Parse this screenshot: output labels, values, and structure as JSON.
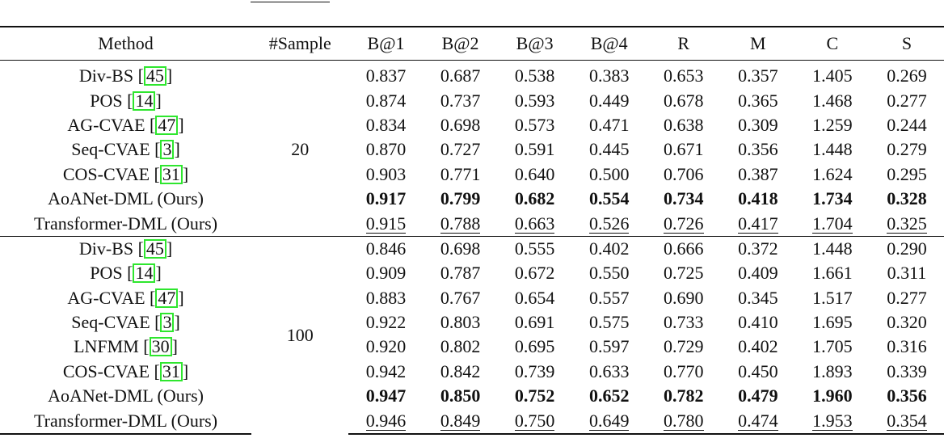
{
  "table": {
    "columns": [
      "Method",
      "#Sample",
      "B@1",
      "B@2",
      "B@3",
      "B@4",
      "R",
      "M",
      "C",
      "S"
    ],
    "colors": {
      "citation_box": "#2ee62e",
      "text": "#111111"
    },
    "groups": [
      {
        "sample": "20",
        "rows": [
          {
            "method": "Div-BS [",
            "cite": "45",
            "close": "]",
            "style": "normal",
            "values": [
              "0.837",
              "0.687",
              "0.538",
              "0.383",
              "0.653",
              "0.357",
              "1.405",
              "0.269"
            ]
          },
          {
            "method": "POS [",
            "cite": "14",
            "close": "]",
            "style": "normal",
            "values": [
              "0.874",
              "0.737",
              "0.593",
              "0.449",
              "0.678",
              "0.365",
              "1.468",
              "0.277"
            ]
          },
          {
            "method": "AG-CVAE [",
            "cite": "47",
            "close": "]",
            "style": "normal",
            "values": [
              "0.834",
              "0.698",
              "0.573",
              "0.471",
              "0.638",
              "0.309",
              "1.259",
              "0.244"
            ]
          },
          {
            "method": "Seq-CVAE [",
            "cite": "3",
            "close": "]",
            "style": "normal",
            "values": [
              "0.870",
              "0.727",
              "0.591",
              "0.445",
              "0.671",
              "0.356",
              "1.448",
              "0.279"
            ]
          },
          {
            "method": "COS-CVAE [",
            "cite": "31",
            "close": "]",
            "style": "normal",
            "values": [
              "0.903",
              "0.771",
              "0.640",
              "0.500",
              "0.706",
              "0.387",
              "1.624",
              "0.295"
            ]
          },
          {
            "method": "AoANet-DML (Ours)",
            "style": "best",
            "values": [
              "0.917",
              "0.799",
              "0.682",
              "0.554",
              "0.734",
              "0.418",
              "1.734",
              "0.328"
            ]
          },
          {
            "method": "Transformer-DML (Ours)",
            "style": "second",
            "values": [
              "0.915",
              "0.788",
              "0.663",
              "0.526",
              "0.726",
              "0.417",
              "1.704",
              "0.325"
            ]
          }
        ]
      },
      {
        "sample": "100",
        "rows": [
          {
            "method": "Div-BS [",
            "cite": "45",
            "close": "]",
            "style": "normal",
            "values": [
              "0.846",
              "0.698",
              "0.555",
              "0.402",
              "0.666",
              "0.372",
              "1.448",
              "0.290"
            ]
          },
          {
            "method": "POS [",
            "cite": "14",
            "close": "]",
            "style": "normal",
            "values": [
              "0.909",
              "0.787",
              "0.672",
              "0.550",
              "0.725",
              "0.409",
              "1.661",
              "0.311"
            ]
          },
          {
            "method": "AG-CVAE [",
            "cite": "47",
            "close": "]",
            "style": "normal",
            "values": [
              "0.883",
              "0.767",
              "0.654",
              "0.557",
              "0.690",
              "0.345",
              "1.517",
              "0.277"
            ]
          },
          {
            "method": "Seq-CVAE [",
            "cite": "3",
            "close": "]",
            "style": "normal",
            "values": [
              "0.922",
              "0.803",
              "0.691",
              "0.575",
              "0.733",
              "0.410",
              "1.695",
              "0.320"
            ]
          },
          {
            "method": "LNFMM [",
            "cite": "30",
            "close": "]",
            "style": "normal",
            "values": [
              "0.920",
              "0.802",
              "0.695",
              "0.597",
              "0.729",
              "0.402",
              "1.705",
              "0.316"
            ]
          },
          {
            "method": "COS-CVAE [",
            "cite": "31",
            "close": "]",
            "style": "normal",
            "values": [
              "0.942",
              "0.842",
              "0.739",
              "0.633",
              "0.770",
              "0.450",
              "1.893",
              "0.339"
            ]
          },
          {
            "method": "AoANet-DML (Ours)",
            "style": "best",
            "values": [
              "0.947",
              "0.850",
              "0.752",
              "0.652",
              "0.782",
              "0.479",
              "1.960",
              "0.356"
            ]
          },
          {
            "method": "Transformer-DML (Ours)",
            "style": "second",
            "values": [
              "0.946",
              "0.849",
              "0.750",
              "0.649",
              "0.780",
              "0.474",
              "1.953",
              "0.354"
            ]
          }
        ]
      }
    ]
  }
}
